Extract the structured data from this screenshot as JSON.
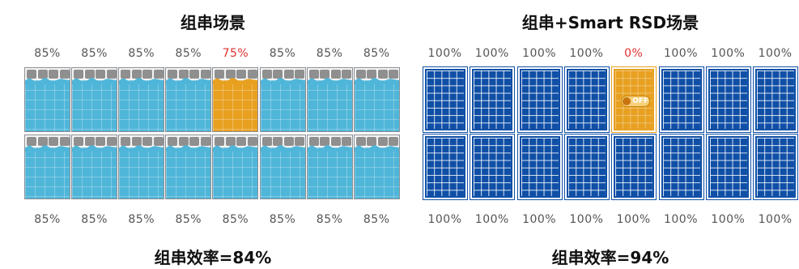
{
  "left": {
    "title": "组串场景",
    "top_percentages": [
      "85%",
      "85%",
      "85%",
      "85%",
      "75%",
      "85%",
      "85%",
      "85%"
    ],
    "bottom_percentages": [
      "85%",
      "85%",
      "85%",
      "85%",
      "85%",
      "85%",
      "85%",
      "85%"
    ],
    "highlight_index": 4,
    "efficiency": "组串效率=84%"
  },
  "right": {
    "title": "组串+Smart RSD场景",
    "top_percentages": [
      "100%",
      "100%",
      "100%",
      "100%",
      "0%",
      "100%",
      "100%",
      "100%"
    ],
    "bottom_percentages": [
      "100%",
      "100%",
      "100%",
      "100%",
      "100%",
      "100%",
      "100%",
      "100%"
    ],
    "highlight_index": 4,
    "switch_label": "OFF",
    "efficiency": "组串效率=94%"
  },
  "colors": {
    "left_panel": "#4fb6d9",
    "right_panel": "#0f4fa6",
    "shaded_panel": "#e8a020",
    "highlight_text": "#e0302e"
  }
}
